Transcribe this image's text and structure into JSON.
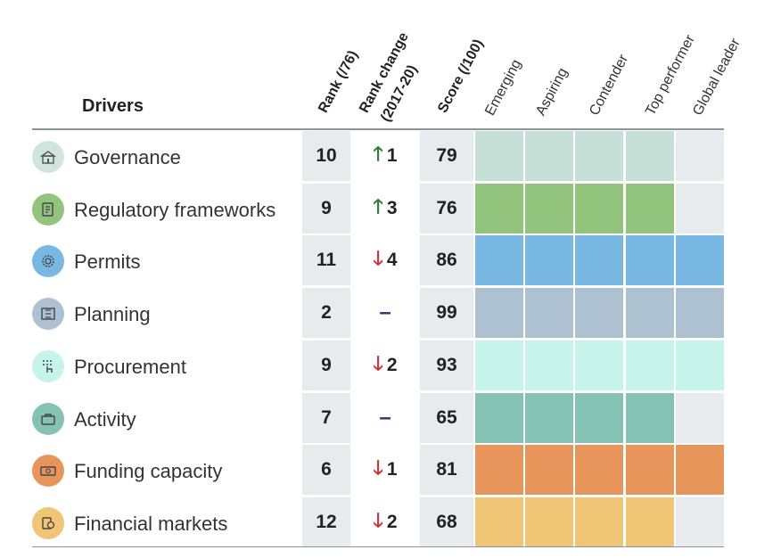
{
  "chart_data": {
    "type": "table",
    "columns": {
      "drivers": "Drivers",
      "rank": "Rank (/76)",
      "rank_change": [
        "Rank change",
        "(2017-20)"
      ],
      "score": "Score (/100)",
      "stages": [
        "Emerging",
        "Aspiring",
        "Contender",
        "Top performer",
        "Global leader"
      ]
    },
    "rows": [
      {
        "driver": "Governance",
        "rank": "10",
        "direction": "up",
        "change": "1",
        "score": "79",
        "stages_filled": 4,
        "color": "#c6e0d7",
        "icon": "building-icon",
        "icon_bg": "#cfe5dd"
      },
      {
        "driver": "Regulatory frameworks",
        "rank": "9",
        "direction": "up",
        "change": "3",
        "score": "76",
        "stages_filled": 4,
        "color": "#93c47d",
        "icon": "document-icon",
        "icon_bg": "#93c47d"
      },
      {
        "driver": "Permits",
        "rank": "11",
        "direction": "down",
        "change": "4",
        "score": "86",
        "stages_filled": 5,
        "color": "#7ab8e4",
        "icon": "gear-badge-icon",
        "icon_bg": "#7ab8e4"
      },
      {
        "driver": "Planning",
        "rank": "2",
        "direction": "none",
        "change": "",
        "score": "99",
        "stages_filled": 5,
        "color": "#adc1d1",
        "icon": "blueprint-icon",
        "icon_bg": "#adc1d1"
      },
      {
        "driver": "Procurement",
        "rank": "9",
        "direction": "down",
        "change": "2",
        "score": "93",
        "stages_filled": 5,
        "color": "#c6f4ea",
        "icon": "hand-pointer-icon",
        "icon_bg": "#c6f4ea"
      },
      {
        "driver": "Activity",
        "rank": "7",
        "direction": "none",
        "change": "",
        "score": "65",
        "stages_filled": 4,
        "color": "#84c2b3",
        "icon": "briefcase-icon",
        "icon_bg": "#84c2b3"
      },
      {
        "driver": "Funding capacity",
        "rank": "6",
        "direction": "down",
        "change": "1",
        "score": "81",
        "stages_filled": 5,
        "color": "#e8955c",
        "icon": "banknote-icon",
        "icon_bg": "#e8955c"
      },
      {
        "driver": "Financial markets",
        "rank": "12",
        "direction": "down",
        "change": "2",
        "score": "68",
        "stages_filled": 4,
        "color": "#f1c576",
        "icon": "coins-icon",
        "icon_bg": "#f1c576"
      }
    ]
  },
  "symbols": {
    "up": "🡑",
    "down": "🡓",
    "none": "–"
  },
  "empty_stage_color": "#e8ebee"
}
